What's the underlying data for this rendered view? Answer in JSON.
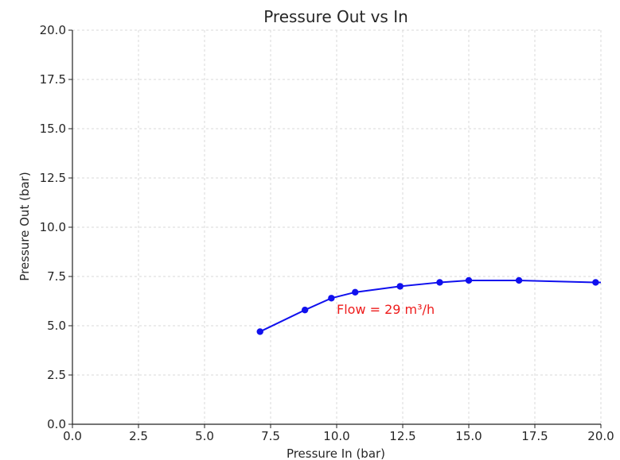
{
  "chart_data": {
    "type": "line",
    "title": "Pressure Out vs In",
    "xlabel": "Pressure In (bar)",
    "ylabel": "Pressure Out (bar)",
    "xlim": [
      0,
      20
    ],
    "ylim": [
      0,
      20
    ],
    "x_ticks": [
      "0.0",
      "2.5",
      "5.0",
      "7.5",
      "10.0",
      "12.5",
      "15.0",
      "17.5",
      "20.0"
    ],
    "y_ticks": [
      "0.0",
      "2.5",
      "5.0",
      "7.5",
      "10.0",
      "12.5",
      "15.0",
      "17.5",
      "20.0"
    ],
    "grid": true,
    "series": [
      {
        "x": [
          7.1,
          8.8,
          9.8,
          10.7,
          12.4,
          13.9,
          15.0,
          16.9,
          19.8,
          20.0
        ],
        "y": [
          4.7,
          5.8,
          6.4,
          6.7,
          7.0,
          7.2,
          7.3,
          7.3,
          7.2,
          7.2
        ],
        "markers": [
          true,
          true,
          true,
          true,
          true,
          true,
          true,
          true,
          true,
          false
        ],
        "color": "#1010ee"
      }
    ],
    "annotations": [
      {
        "text": "Flow = 29 m³/h",
        "x": 10.0,
        "y": 5.6,
        "color": "#ee1c1c"
      }
    ]
  }
}
